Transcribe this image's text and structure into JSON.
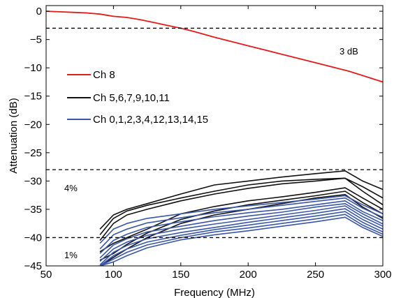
{
  "chart_data": {
    "type": "line",
    "title": "",
    "xlabel": "Frequency (MHz)",
    "ylabel": "Attenuation (dB)",
    "xlim": [
      50,
      300
    ],
    "ylim": [
      -45,
      1
    ],
    "xticks": [
      50,
      100,
      150,
      200,
      250,
      300
    ],
    "xtick_labels": [
      "50",
      "100",
      "150",
      "200",
      "250",
      "300"
    ],
    "yticks": [
      0,
      -5,
      -10,
      -15,
      -20,
      -25,
      -30,
      -35,
      -40,
      -45
    ],
    "ytick_labels": [
      "0",
      "−5",
      "−10",
      "−15",
      "−20",
      "−25",
      "−30",
      "−35",
      "−40",
      "−45"
    ],
    "grid": false,
    "legend_position": "left-middle",
    "colors": {
      "red": "#e31a1c",
      "black": "#111111",
      "blue": "#3a56a8"
    },
    "reference_lines": [
      {
        "y": -3,
        "label": "3 dB"
      },
      {
        "y": -28,
        "label": "4%"
      },
      {
        "y": -40,
        "label": "1%"
      }
    ],
    "series": [
      {
        "name": "Ch 8",
        "color": "#e31a1c",
        "x": [
          50,
          60,
          70,
          80,
          85,
          90,
          95,
          100,
          110,
          120,
          130,
          140,
          150,
          160,
          175,
          200,
          225,
          250,
          275,
          300
        ],
        "y": [
          0,
          -0.1,
          -0.2,
          -0.3,
          -0.4,
          -0.5,
          -0.7,
          -0.9,
          -1.1,
          -1.5,
          -2.0,
          -2.5,
          -3.0,
          -3.6,
          -4.6,
          -6.1,
          -7.6,
          -9.1,
          -10.6,
          -12.5
        ]
      },
      {
        "name": "Ch 5,6,7,9,10,11",
        "color": "#111111",
        "x": [
          90,
          100,
          110,
          125,
          150,
          175,
          200,
          225,
          250,
          272,
          285,
          300
        ],
        "lines": [
          [
            -38.5,
            -36.0,
            -35.0,
            -34.0,
            -32.3,
            -30.7,
            -30.0,
            -29.3,
            -28.7,
            -28.2,
            -30.0,
            -31.5
          ],
          [
            -39.5,
            -36.6,
            -35.3,
            -34.3,
            -33.0,
            -31.8,
            -30.7,
            -30.0,
            -29.7,
            -29.5,
            -31.0,
            -33.0
          ],
          [
            -40.5,
            -37.5,
            -36.0,
            -35.0,
            -33.5,
            -32.3,
            -31.3,
            -30.5,
            -30.0,
            -29.5,
            -31.8,
            -34.2
          ],
          [
            -42.5,
            -41.0,
            -40.0,
            -38.5,
            -35.8,
            -34.5,
            -33.5,
            -32.8,
            -32.0,
            -31.2,
            -33.0,
            -35.0
          ],
          [
            -44.0,
            -42.8,
            -41.2,
            -39.2,
            -36.8,
            -35.3,
            -34.2,
            -33.4,
            -32.6,
            -31.8,
            -33.8,
            -35.8
          ],
          [
            -45.0,
            -43.5,
            -42.0,
            -40.0,
            -37.5,
            -36.0,
            -35.0,
            -34.0,
            -33.0,
            -32.4,
            -34.6,
            -36.6
          ]
        ]
      },
      {
        "name": "Ch 0,1,2,3,4,12,13,14,15",
        "color": "#3a56a8",
        "x": [
          90,
          100,
          110,
          125,
          150,
          175,
          200,
          225,
          250,
          272,
          285,
          300
        ],
        "lines": [
          [
            -41.0,
            -38.5,
            -37.5,
            -36.6,
            -35.8,
            -35.0,
            -34.4,
            -33.8,
            -33.2,
            -32.6,
            -34.2,
            -35.8
          ],
          [
            -42.0,
            -39.5,
            -38.5,
            -37.4,
            -36.5,
            -35.6,
            -35.0,
            -34.3,
            -33.6,
            -33.0,
            -34.8,
            -36.4
          ],
          [
            -42.8,
            -40.5,
            -39.4,
            -38.2,
            -37.2,
            -36.3,
            -35.6,
            -35.0,
            -34.2,
            -33.5,
            -35.4,
            -37.0
          ],
          [
            -43.6,
            -41.3,
            -40.2,
            -39.0,
            -38.0,
            -37.0,
            -36.2,
            -35.5,
            -34.6,
            -34.0,
            -35.8,
            -37.6
          ],
          [
            -44.2,
            -42.0,
            -40.8,
            -39.6,
            -38.5,
            -37.6,
            -36.8,
            -36.0,
            -35.2,
            -34.4,
            -36.3,
            -38.0
          ],
          [
            -44.8,
            -42.6,
            -41.4,
            -40.2,
            -39.1,
            -38.2,
            -37.3,
            -36.5,
            -35.7,
            -34.9,
            -36.8,
            -38.5
          ],
          [
            -45.0,
            -43.2,
            -42.0,
            -40.8,
            -39.6,
            -38.6,
            -37.8,
            -37.0,
            -36.2,
            -35.4,
            -37.3,
            -39.0
          ],
          [
            -45.0,
            -43.8,
            -42.6,
            -41.3,
            -40.0,
            -39.0,
            -38.3,
            -37.5,
            -36.7,
            -35.9,
            -37.8,
            -39.4
          ],
          [
            -45.0,
            -44.3,
            -43.2,
            -41.8,
            -40.4,
            -39.5,
            -38.8,
            -38.0,
            -37.2,
            -36.4,
            -38.2,
            -39.8
          ]
        ]
      }
    ]
  }
}
